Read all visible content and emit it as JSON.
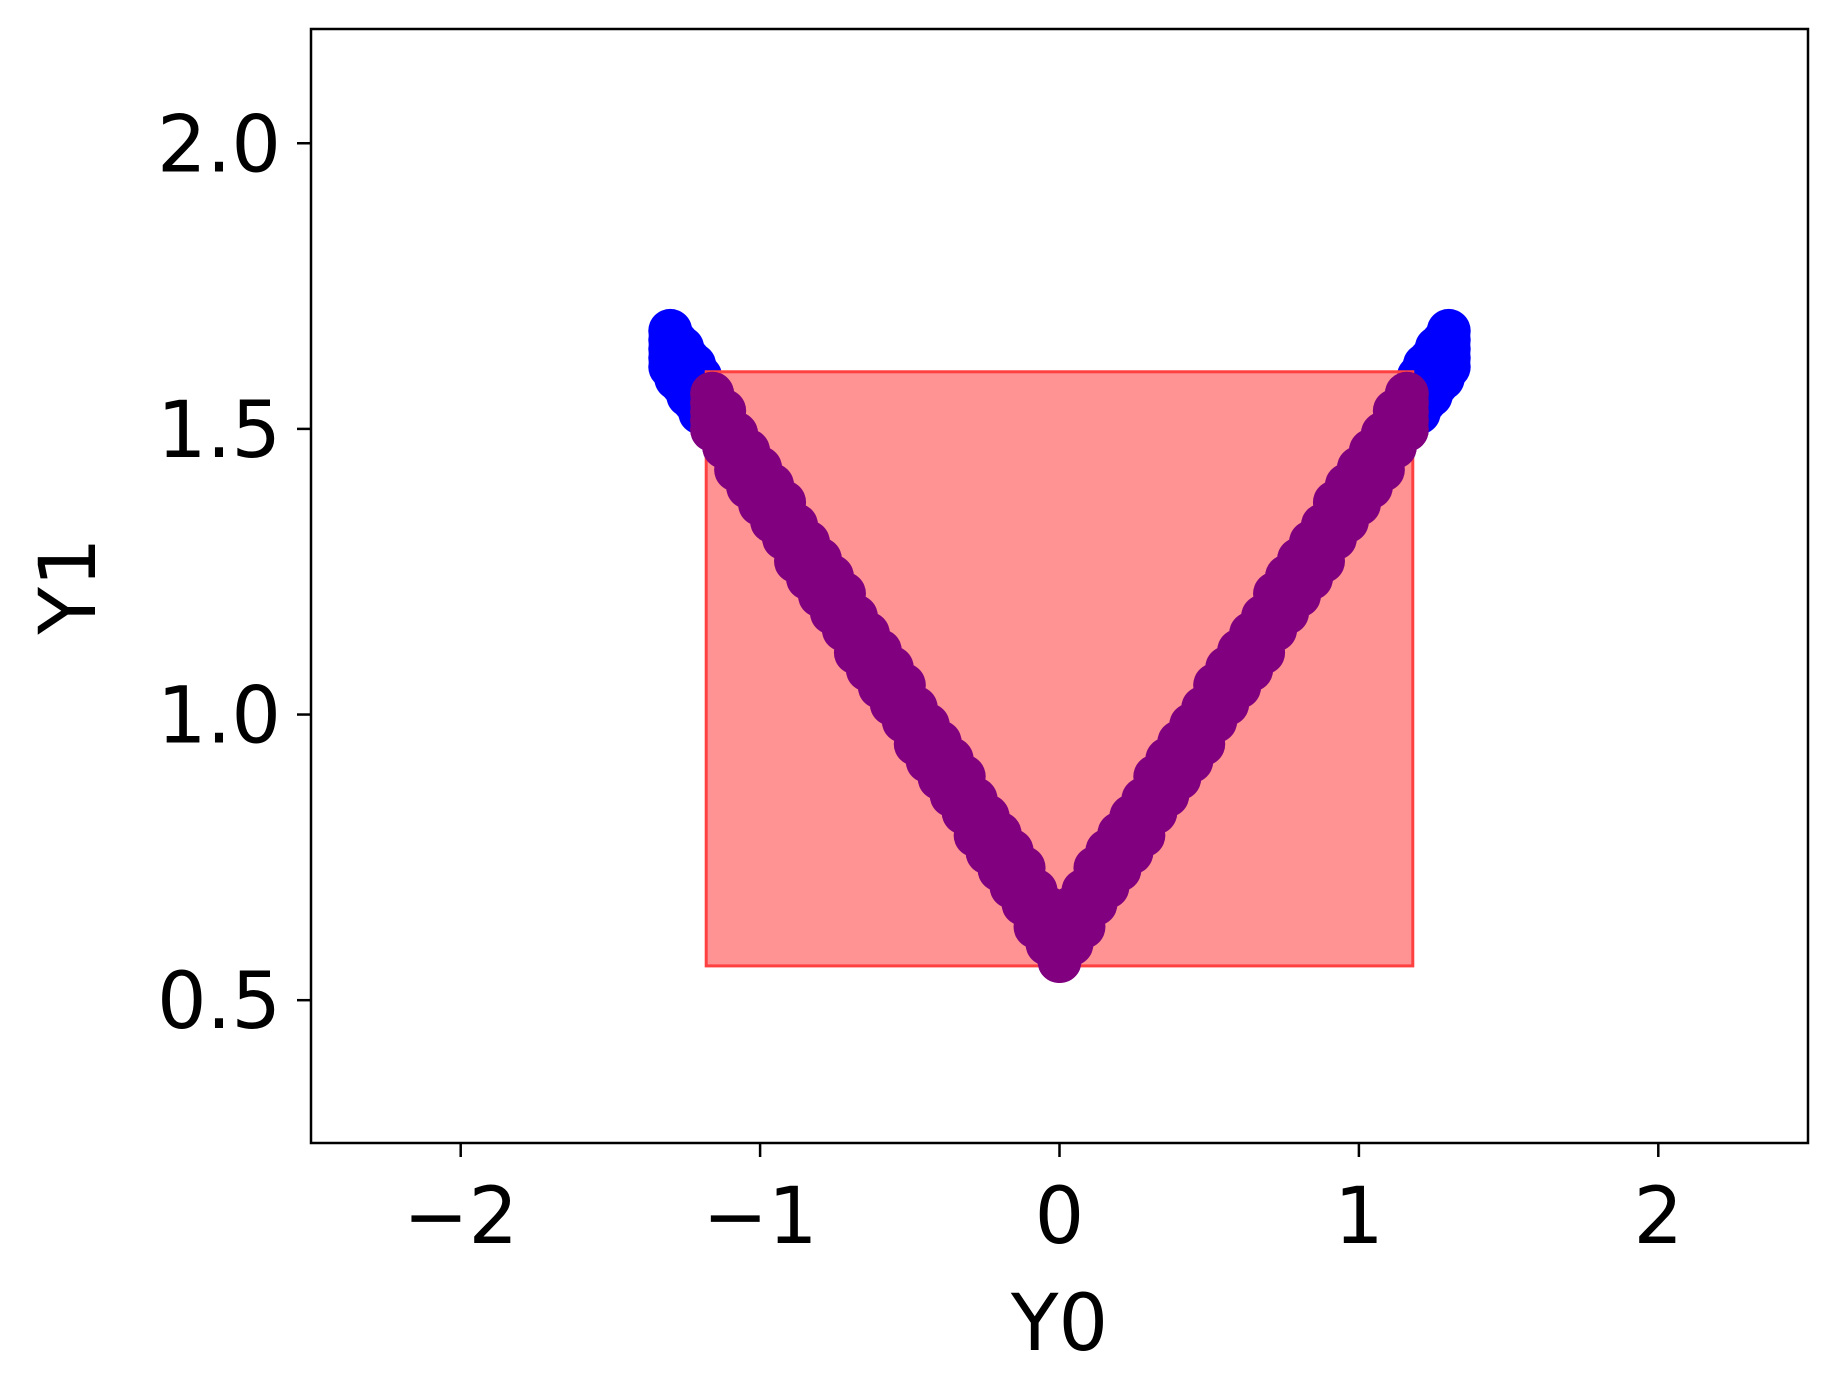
{
  "chart_data": {
    "type": "scatter",
    "xlabel": "Y0",
    "ylabel": "Y1",
    "xlim": [
      -2.5,
      2.5
    ],
    "ylim": [
      0.25,
      2.2
    ],
    "xticks": [
      -2,
      -1,
      0,
      1,
      2
    ],
    "xtick_labels": [
      "−2",
      "−1",
      "0",
      "1",
      "2"
    ],
    "yticks": [
      0.5,
      1.0,
      1.5,
      2.0
    ],
    "ytick_labels": [
      "0.5",
      "1.0",
      "1.5",
      "2.0"
    ],
    "grid": false,
    "colors": {
      "outside_points": "#0000ff",
      "inside_points": "#800080",
      "region_fill": "#ff8080",
      "region_edge": "#ff4040"
    },
    "region": {
      "x": [
        -1.18,
        1.18
      ],
      "y": [
        0.56,
        1.6
      ]
    },
    "series": [
      {
        "curve": "y = 0.6 + 0.8*|x|",
        "x_range": [
          -1.3,
          1.3
        ],
        "points": [
          [
            -1.3,
            1.64
          ],
          [
            -1.28,
            1.62
          ],
          [
            -1.26,
            1.61
          ],
          [
            -1.24,
            1.59
          ],
          [
            -1.22,
            1.58
          ],
          [
            -1.2,
            1.56
          ],
          [
            -1.16,
            1.53
          ],
          [
            -1.12,
            1.5
          ],
          [
            -1.08,
            1.46
          ],
          [
            -1.04,
            1.43
          ],
          [
            -1.0,
            1.4
          ],
          [
            -0.96,
            1.37
          ],
          [
            -0.92,
            1.34
          ],
          [
            -0.88,
            1.3
          ],
          [
            -0.84,
            1.27
          ],
          [
            -0.8,
            1.24
          ],
          [
            -0.76,
            1.21
          ],
          [
            -0.72,
            1.18
          ],
          [
            -0.68,
            1.14
          ],
          [
            -0.64,
            1.11
          ],
          [
            -0.6,
            1.08
          ],
          [
            -0.56,
            1.05
          ],
          [
            -0.52,
            1.02
          ],
          [
            -0.48,
            0.98
          ],
          [
            -0.44,
            0.95
          ],
          [
            -0.4,
            0.92
          ],
          [
            -0.36,
            0.89
          ],
          [
            -0.32,
            0.86
          ],
          [
            -0.28,
            0.82
          ],
          [
            -0.24,
            0.79
          ],
          [
            -0.2,
            0.76
          ],
          [
            -0.16,
            0.73
          ],
          [
            -0.12,
            0.7
          ],
          [
            -0.08,
            0.66
          ],
          [
            -0.04,
            0.63
          ],
          [
            0.0,
            0.6
          ],
          [
            0.04,
            0.63
          ],
          [
            0.08,
            0.66
          ],
          [
            0.12,
            0.7
          ],
          [
            0.16,
            0.73
          ],
          [
            0.2,
            0.76
          ],
          [
            0.24,
            0.79
          ],
          [
            0.28,
            0.82
          ],
          [
            0.32,
            0.86
          ],
          [
            0.36,
            0.89
          ],
          [
            0.4,
            0.92
          ],
          [
            0.44,
            0.95
          ],
          [
            0.48,
            0.98
          ],
          [
            0.52,
            1.02
          ],
          [
            0.56,
            1.05
          ],
          [
            0.6,
            1.08
          ],
          [
            0.64,
            1.11
          ],
          [
            0.68,
            1.14
          ],
          [
            0.72,
            1.18
          ],
          [
            0.76,
            1.21
          ],
          [
            0.8,
            1.24
          ],
          [
            0.84,
            1.27
          ],
          [
            0.88,
            1.3
          ],
          [
            0.92,
            1.34
          ],
          [
            0.96,
            1.37
          ],
          [
            1.0,
            1.4
          ],
          [
            1.04,
            1.43
          ],
          [
            1.08,
            1.46
          ],
          [
            1.12,
            1.5
          ],
          [
            1.16,
            1.53
          ],
          [
            1.2,
            1.56
          ],
          [
            1.22,
            1.58
          ],
          [
            1.24,
            1.59
          ],
          [
            1.26,
            1.61
          ],
          [
            1.28,
            1.62
          ],
          [
            1.3,
            1.64
          ]
        ]
      }
    ]
  }
}
